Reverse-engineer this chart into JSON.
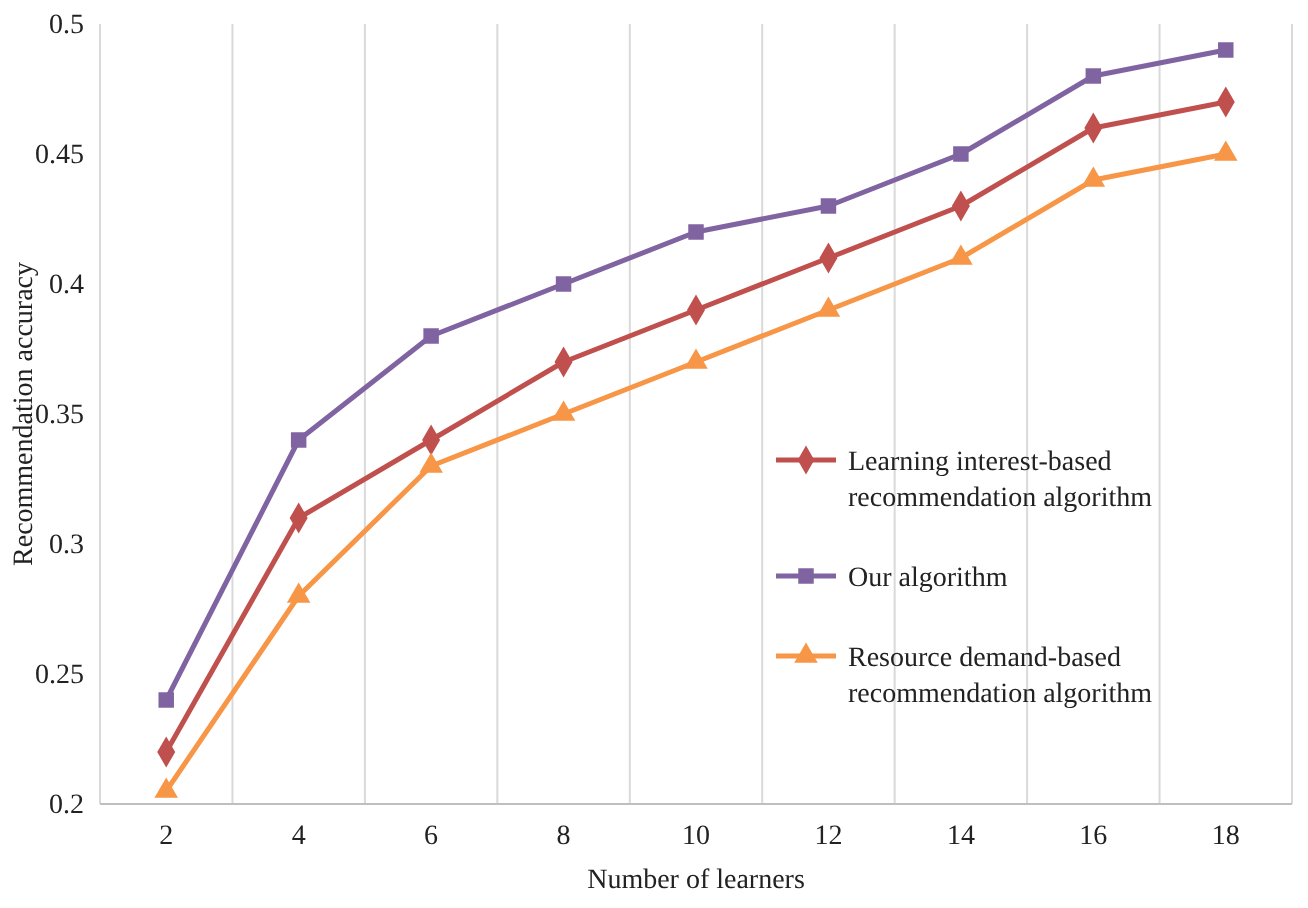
{
  "chart_data": {
    "type": "line",
    "xlabel": "Number of learners",
    "ylabel": "Recommendation accuracy",
    "categories": [
      "2",
      "4",
      "6",
      "8",
      "10",
      "12",
      "14",
      "16",
      "18"
    ],
    "ylim": [
      0.2,
      0.5
    ],
    "yticks": [
      0.2,
      0.25,
      0.3,
      0.35,
      0.4,
      0.45,
      0.5
    ],
    "grid": "x",
    "legend": "right",
    "line_style": "solid",
    "series": [
      {
        "name": "Learning interest-based recommendation algorithm",
        "color": "#c0504d",
        "marker": "diamond",
        "values": [
          0.22,
          0.31,
          0.34,
          0.37,
          0.39,
          0.41,
          0.43,
          0.46,
          0.47
        ]
      },
      {
        "name": "Our algorithm",
        "color": "#8064a2",
        "marker": "square",
        "values": [
          0.24,
          0.34,
          0.38,
          0.4,
          0.42,
          0.43,
          0.45,
          0.48,
          0.49
        ]
      },
      {
        "name": "Resource demand-based recommendation algorithm",
        "color": "#f79646",
        "marker": "triangle",
        "values": [
          0.205,
          0.28,
          0.33,
          0.35,
          0.37,
          0.39,
          0.41,
          0.44,
          0.45
        ]
      }
    ]
  }
}
